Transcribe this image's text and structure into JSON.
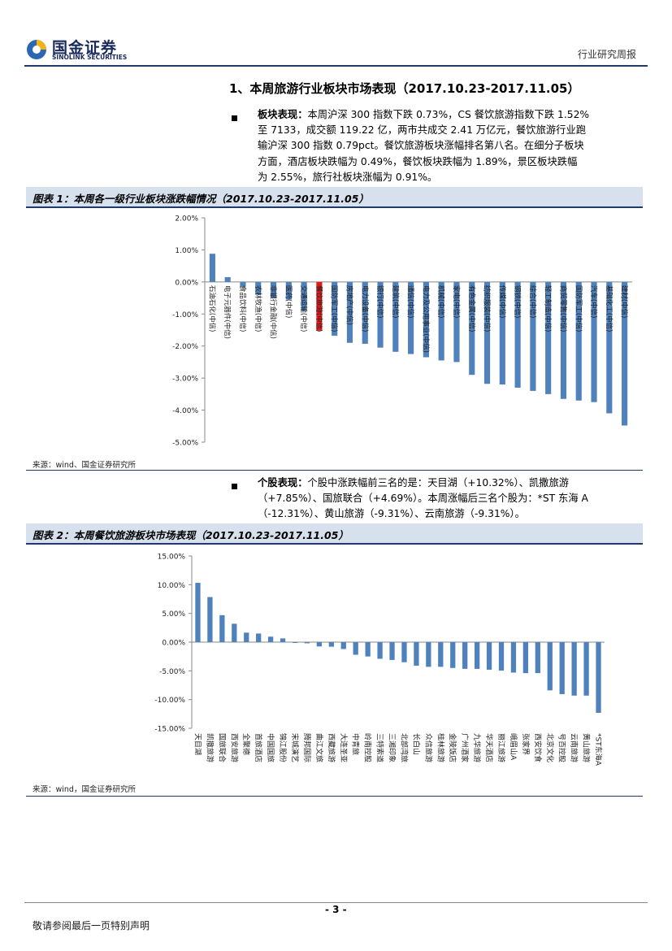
{
  "header": {
    "logo_cn": "国金证券",
    "logo_en": "SINOLINK SECURITIES",
    "doc_type": "行业研究周报"
  },
  "section": {
    "title": "1、本周旅游行业板块市场表现（2017.10.23-2017.11.05）"
  },
  "para1": {
    "label": "板块表现：",
    "lines": [
      "本周沪深 300 指数下跌 0.73%，CS 餐饮旅游指数下跌 1.52%",
      "至 7133，成交额 119.22 亿，两市共成交 2.41 万亿元，餐饮旅游行业跑",
      "输沪深 300 指数 0.79pct。餐饮旅游板块涨幅排名第八名。在细分子板块",
      "方面，酒店板块跌幅为 0.49%，餐饮板块跌幅为 1.89%，景区板块跌幅",
      "为 2.55%，旅行社板块涨幅为 0.91%。"
    ]
  },
  "figure1": {
    "title": "图表 1：本周各一级行业板块涨跌幅情况（2017.10.23-2017.11.05）",
    "source": "来源：wind、国金证券研究所"
  },
  "para2": {
    "label": "个股表现：",
    "lines": [
      "个股中涨跌幅前三名的是：天目湖（+10.32%）、凯撒旅游",
      "（+7.85%）、国旅联合（+4.69%）。本周涨幅后三名个股为：*ST 东海 A",
      "（-12.31%）、黄山旅游（-9.31%）、云南旅游（-9.31%）。"
    ]
  },
  "figure2": {
    "title": "图表 2：本周餐饮旅游板块市场表现（2017.10.23-2017.11.05）",
    "source": "来源：wind，国金证券研究所"
  },
  "footer": {
    "page_number": "- 3 -",
    "disclaimer": "敬请参阅最后一页特别声明"
  },
  "chart_data": [
    {
      "type": "bar",
      "title": "本周各一级行业板块涨跌幅情况（2017.10.23-2017.11.05）",
      "ylim": [
        -0.05,
        0.02
      ],
      "yticks": [
        "2.00%",
        "1.00%",
        "0.00%",
        "-1.00%",
        "-2.00%",
        "-3.00%",
        "-4.00%",
        "-5.00%"
      ],
      "grid": false,
      "highlight_color": "#e31a1c",
      "bar_color": "#4f81bd",
      "categories": [
        "石油石化(中信)",
        "电子元器件(中信)",
        "食品饮料(中信)",
        "农林牧渔(中信)",
        "非银行金融(中信)",
        "医药(中信)",
        "交通运输(中信)",
        "餐饮旅游(中信)",
        "国防军工(中信)",
        "房地产(中信)",
        "电力设备(中信)",
        "银行(中信)",
        "建筑(中信)",
        "通信(中信)",
        "电力及公用事业(中信)",
        "机械(中信)",
        "家电(中信)",
        "有色金属(中信)",
        "纺织服装(中信)",
        "传媒(中信)",
        "钢铁(中信)",
        "综合(中信)",
        "轻工制造(中信)",
        "商贸零售(中信)",
        "国防军工(中信)",
        "汽车(中信)",
        "基础化工(中信)",
        "建材(中信)"
      ],
      "values": [
        0.0088,
        0.0015,
        -0.0015,
        -0.004,
        -0.005,
        -0.0055,
        -0.009,
        -0.0152,
        -0.0168,
        -0.019,
        -0.0193,
        -0.0205,
        -0.0218,
        -0.0225,
        -0.0235,
        -0.0245,
        -0.025,
        -0.029,
        -0.0318,
        -0.032,
        -0.033,
        -0.034,
        -0.035,
        -0.0365,
        -0.037,
        -0.0375,
        -0.041,
        -0.0448
      ],
      "highlight_index": 7
    },
    {
      "type": "bar",
      "title": "本周餐饮旅游板块市场表现（2017.10.23-2017.11.05）",
      "ylim": [
        -0.15,
        0.15
      ],
      "yticks": [
        "15.00%",
        "10.00%",
        "5.00%",
        "0.00%",
        "-5.00%",
        "-10.00%",
        "-15.00%"
      ],
      "grid": false,
      "bar_color": "#4f81bd",
      "categories": [
        "天目湖",
        "凯撒旅游",
        "国旅联合",
        "西安旅游",
        "全聚德",
        "首旅酒店",
        "中国国旅",
        "锦江股份",
        "宋城演艺",
        "腾邦国际",
        "曲江文旅",
        "西藏旅游",
        "大连圣亚",
        "中青旅",
        "岭南控股",
        "三特索道",
        "三湘印象",
        "北部湾旅",
        "长白山",
        "众信旅游",
        "桂林旅游",
        "金陵饭店",
        "广州酒家",
        "九华旅游",
        "华天酒店",
        "丽江旅游",
        "峨眉山A",
        "张家界",
        "西安饮食",
        "北京文化",
        "号百控股",
        "云南旅游",
        "黄山旅游",
        "*ST东海A"
      ],
      "values": [
        0.1032,
        0.0785,
        0.0469,
        0.032,
        0.0165,
        0.015,
        0.0095,
        0.0065,
        -0.0005,
        -0.002,
        -0.0075,
        -0.008,
        -0.012,
        -0.022,
        -0.025,
        -0.029,
        -0.031,
        -0.035,
        -0.041,
        -0.043,
        -0.043,
        -0.045,
        -0.0465,
        -0.0465,
        -0.048,
        -0.0495,
        -0.053,
        -0.054,
        -0.054,
        -0.084,
        -0.0905,
        -0.0931,
        -0.0931,
        -0.1231
      ]
    }
  ]
}
